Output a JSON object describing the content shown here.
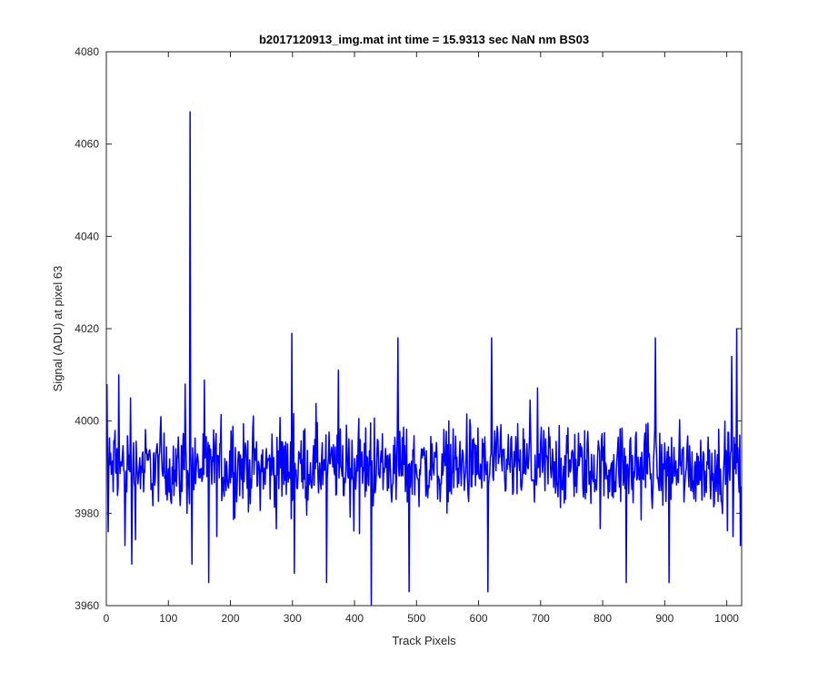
{
  "chart_data": {
    "type": "line",
    "title": "b2017120913_img.mat int time = 15.9313 sec  NaN nm BS03",
    "xlabel": "Track Pixels",
    "ylabel": "Signal (ADU) at pixel 63",
    "xlim": [
      0,
      1024
    ],
    "ylim": [
      3960,
      4080
    ],
    "xticks": [
      0,
      100,
      200,
      300,
      400,
      500,
      600,
      700,
      800,
      900,
      1000
    ],
    "yticks": [
      3960,
      3980,
      4000,
      4020,
      4040,
      4060,
      4080
    ],
    "grid": false,
    "legend": "none",
    "series": [
      {
        "color": "#0000ff",
        "x_start": 1,
        "x_step": 1,
        "baseline_mean": 3990,
        "noise_range": [
          3969,
          4010
        ],
        "key_points": [
          {
            "x": 1,
            "y": 4008
          },
          {
            "x": 3,
            "y": 3976
          },
          {
            "x": 20,
            "y": 4010
          },
          {
            "x": 30,
            "y": 3973
          },
          {
            "x": 39,
            "y": 4005
          },
          {
            "x": 41,
            "y": 3969
          },
          {
            "x": 127,
            "y": 4008
          },
          {
            "x": 135,
            "y": 4067
          },
          {
            "x": 138,
            "y": 3969
          },
          {
            "x": 165,
            "y": 3965
          },
          {
            "x": 299,
            "y": 4019
          },
          {
            "x": 303,
            "y": 3967
          },
          {
            "x": 355,
            "y": 3965
          },
          {
            "x": 374,
            "y": 4011
          },
          {
            "x": 427,
            "y": 3960
          },
          {
            "x": 470,
            "y": 4018
          },
          {
            "x": 488,
            "y": 3963
          },
          {
            "x": 615,
            "y": 3963
          },
          {
            "x": 621,
            "y": 4018
          },
          {
            "x": 838,
            "y": 3965
          },
          {
            "x": 885,
            "y": 4018
          },
          {
            "x": 907,
            "y": 3965
          },
          {
            "x": 1008,
            "y": 4014
          },
          {
            "x": 1016,
            "y": 4020
          },
          {
            "x": 1022,
            "y": 3973
          }
        ]
      }
    ]
  }
}
